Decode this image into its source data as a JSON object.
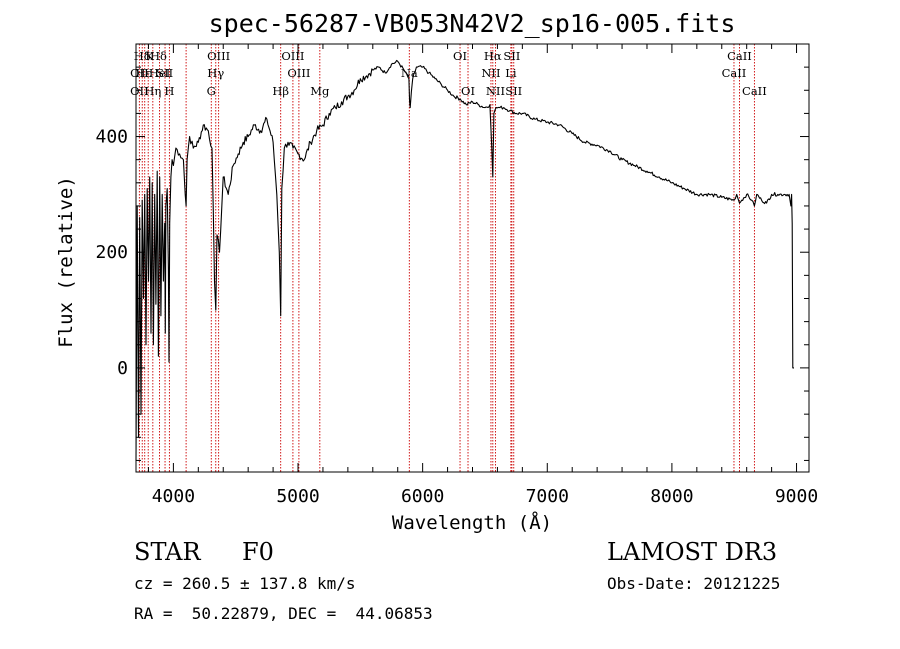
{
  "chart_data": {
    "type": "line",
    "title": "spec-56287-VB053N42V2_sp16-005.fits",
    "xlabel": "Wavelength (Å)",
    "ylabel": "Flux (relative)",
    "xlim": [
      3700,
      9100
    ],
    "ylim": [
      -180,
      560
    ],
    "x_ticks": [
      4000,
      5000,
      6000,
      7000,
      8000,
      9000
    ],
    "x_tick_labels": [
      "4000",
      "5000",
      "6000",
      "7000",
      "8000",
      "9000"
    ],
    "y_ticks": [
      0,
      200,
      400
    ],
    "y_tick_labels": [
      "0",
      "200",
      "400"
    ],
    "series": [
      {
        "name": "spectrum",
        "color": "#000000",
        "x": [
          3700,
          3710,
          3720,
          3730,
          3740,
          3750,
          3760,
          3770,
          3780,
          3790,
          3800,
          3810,
          3820,
          3830,
          3840,
          3850,
          3860,
          3870,
          3880,
          3890,
          3900,
          3910,
          3920,
          3930,
          3935,
          3940,
          3950,
          3960,
          3965,
          3970,
          3980,
          3990,
          4000,
          4020,
          4050,
          4080,
          4095,
          4102,
          4110,
          4130,
          4160,
          4200,
          4240,
          4280,
          4310,
          4330,
          4340,
          4350,
          4370,
          4400,
          4440,
          4480,
          4520,
          4560,
          4600,
          4650,
          4700,
          4750,
          4800,
          4830,
          4850,
          4861,
          4870,
          4890,
          4920,
          4960,
          5000,
          5050,
          5100,
          5150,
          5200,
          5250,
          5300,
          5350,
          5400,
          5450,
          5500,
          5550,
          5600,
          5650,
          5700,
          5750,
          5800,
          5850,
          5890,
          5895,
          5900,
          5920,
          5950,
          6000,
          6050,
          6100,
          6150,
          6200,
          6250,
          6300,
          6350,
          6400,
          6450,
          6500,
          6540,
          6555,
          6563,
          6572,
          6590,
          6620,
          6650,
          6700,
          6750,
          6800,
          6900,
          7000,
          7100,
          7200,
          7300,
          7400,
          7500,
          7600,
          7700,
          7800,
          7900,
          8000,
          8100,
          8200,
          8300,
          8400,
          8498,
          8520,
          8542,
          8560,
          8600,
          8640,
          8662,
          8680,
          8720,
          8760,
          8800,
          8850,
          8900,
          8940,
          8955,
          8960,
          8965,
          8970,
          8980
        ],
        "y": [
          -160,
          280,
          -120,
          260,
          -80,
          290,
          120,
          300,
          40,
          310,
          150,
          330,
          60,
          320,
          40,
          300,
          110,
          340,
          20,
          330,
          90,
          300,
          150,
          250,
          60,
          280,
          310,
          170,
          10,
          250,
          330,
          360,
          350,
          380,
          370,
          360,
          300,
          280,
          360,
          400,
          380,
          390,
          420,
          410,
          380,
          150,
          100,
          230,
          200,
          330,
          300,
          350,
          370,
          390,
          400,
          420,
          410,
          430,
          390,
          300,
          200,
          90,
          310,
          380,
          390,
          380,
          370,
          360,
          390,
          410,
          420,
          440,
          450,
          460,
          470,
          480,
          500,
          505,
          515,
          520,
          510,
          525,
          530,
          515,
          500,
          460,
          450,
          500,
          520,
          520,
          510,
          500,
          490,
          480,
          470,
          465,
          455,
          460,
          455,
          450,
          455,
          380,
          330,
          440,
          450,
          450,
          450,
          445,
          440,
          440,
          430,
          425,
          420,
          405,
          390,
          385,
          375,
          360,
          350,
          340,
          330,
          320,
          310,
          300,
          300,
          295,
          290,
          300,
          285,
          290,
          300,
          290,
          280,
          300,
          290,
          285,
          300,
          300,
          300,
          300,
          280,
          300,
          250,
          0,
          0
        ]
      }
    ],
    "spectral_lines": [
      {
        "label": "Hδ",
        "wavelength": 3750,
        "row": 1
      },
      {
        "label": "K",
        "wavelength": 3810,
        "row": 1
      },
      {
        "label": "Hδ",
        "wavelength": 3880,
        "row": 1
      },
      {
        "label": "OII",
        "wavelength": 3727,
        "row": 2
      },
      {
        "label": "Hε",
        "wavelength": 3760,
        "row": 2
      },
      {
        "label": "HeI",
        "wavelength": 3889,
        "row": 2
      },
      {
        "label": "SII",
        "wavelength": 3930,
        "row": 2
      },
      {
        "label": "OII",
        "wavelength": 3727,
        "row": 3
      },
      {
        "label": "Hη",
        "wavelength": 3835,
        "row": 3
      },
      {
        "label": "H",
        "wavelength": 3968,
        "row": 3
      },
      {
        "label": "OIII",
        "wavelength": 4363,
        "row": 1
      },
      {
        "label": "Hγ",
        "wavelength": 4340,
        "row": 2
      },
      {
        "label": "G",
        "wavelength": 4304,
        "row": 3
      },
      {
        "label": "OIII",
        "wavelength": 4959,
        "row": 1
      },
      {
        "label": "OIII",
        "wavelength": 5007,
        "row": 2
      },
      {
        "label": "Hβ",
        "wavelength": 4861,
        "row": 3
      },
      {
        "label": "Mg",
        "wavelength": 5175,
        "row": 3
      },
      {
        "label": "Na",
        "wavelength": 5893,
        "row": 2
      },
      {
        "label": "OI",
        "wavelength": 6300,
        "row": 1
      },
      {
        "label": "OI",
        "wavelength": 6364,
        "row": 3
      },
      {
        "label": "Hα",
        "wavelength": 6563,
        "row": 1
      },
      {
        "label": "SII",
        "wavelength": 6716,
        "row": 1
      },
      {
        "label": "NII",
        "wavelength": 6548,
        "row": 2
      },
      {
        "label": "Li",
        "wavelength": 6708,
        "row": 2
      },
      {
        "label": "NII",
        "wavelength": 6584,
        "row": 3
      },
      {
        "label": "SII",
        "wavelength": 6731,
        "row": 3
      },
      {
        "label": "CaII",
        "wavelength": 8542,
        "row": 1
      },
      {
        "label": "CaII",
        "wavelength": 8498,
        "row": 2
      },
      {
        "label": "CaII",
        "wavelength": 8662,
        "row": 3
      }
    ],
    "marker_lines": [
      3727,
      3750,
      3770,
      3798,
      3835,
      3889,
      3933,
      3968,
      4102,
      4304,
      4340,
      4363,
      4861,
      4959,
      5007,
      5175,
      5893,
      6300,
      6364,
      6548,
      6563,
      6584,
      6708,
      6716,
      6731,
      8498,
      8542,
      8662
    ],
    "marker_color": "#cc0000",
    "axis_color": "#000000"
  },
  "info": {
    "object_class": "STAR",
    "subclass": "F0",
    "survey": "LAMOST DR3",
    "redshift": "cz = 260.5 ± 137.8 km/s",
    "obs_date": "Obs-Date: 20121225",
    "coords": "RA =  50.22879, DEC =  44.06853"
  }
}
